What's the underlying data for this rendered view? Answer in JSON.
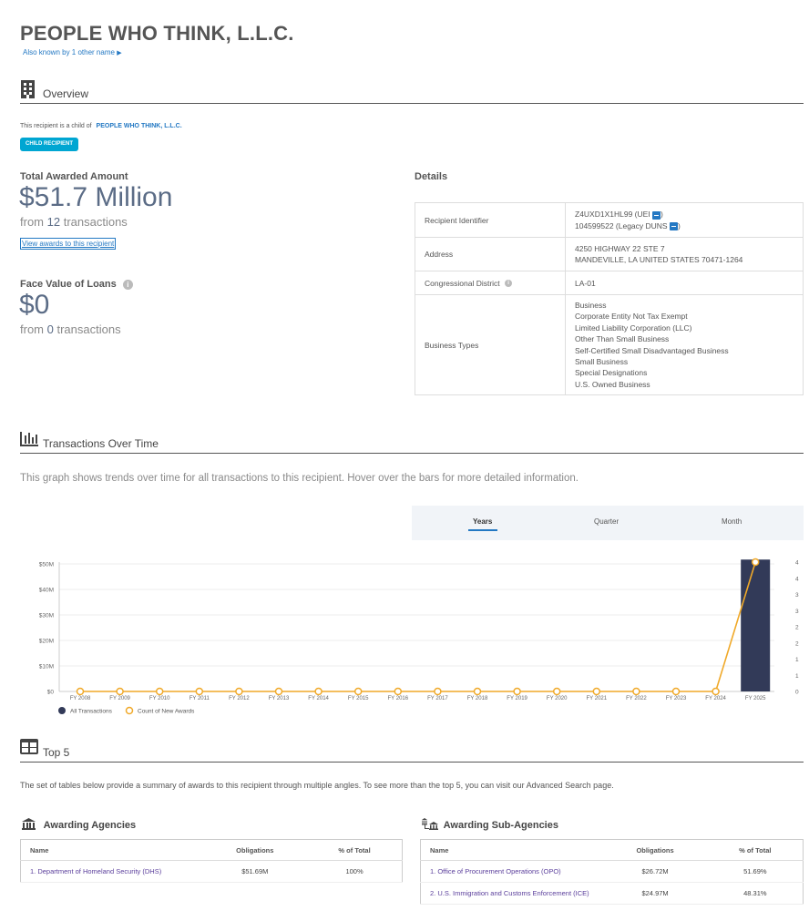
{
  "header": {
    "title": "PEOPLE WHO THINK, L.L.C.",
    "aka": "Also known by 1 other name"
  },
  "overview": {
    "section_title": "Overview",
    "child_text": "This recipient is a child of",
    "parent_name": "PEOPLE WHO THINK, L.L.C.",
    "badge": "CHILD RECIPIENT",
    "total_label": "Total Awarded Amount",
    "total_value": "$51.7 Million",
    "total_from_prefix": "from",
    "total_count": "12",
    "total_from_suffix": "transactions",
    "view_awards": "View awards to this recipient",
    "loans_label": "Face Value of Loans",
    "loans_value": "$0",
    "loans_from_prefix": "from",
    "loans_count": "0",
    "loans_from_suffix": "transactions"
  },
  "details": {
    "title": "Details",
    "recipient_identifier_label": "Recipient Identifier",
    "uei_line_prefix": "Z4UXD1X1HL99 (UEI",
    "uei_line_suffix": ")",
    "duns_line_prefix": "104599522 (Legacy DUNS",
    "duns_line_suffix": ")",
    "address_label": "Address",
    "address_line1": "4250 HIGHWAY 22 STE 7",
    "address_line2": "MANDEVILLE, LA UNITED STATES 70471-1264",
    "district_label": "Congressional District",
    "district_value": "LA-01",
    "business_types_label": "Business Types",
    "business_types": [
      "Business",
      "Corporate Entity Not Tax Exempt",
      "Limited Liability Corporation (LLC)",
      "Other Than Small Business",
      "Self-Certified Small Disadvantaged Business",
      "Small Business",
      "Special Designations",
      "U.S. Owned Business"
    ]
  },
  "transactions": {
    "section_title": "Transactions Over Time",
    "description": "This graph shows trends over time for all transactions to this recipient. Hover over the bars for more detailed information.",
    "periods": [
      "Years",
      "Quarter",
      "Month"
    ],
    "active_period": "Years"
  },
  "chart_data": {
    "type": "bar",
    "categories": [
      "FY 2008",
      "FY 2009",
      "FY 2010",
      "FY 2011",
      "FY 2012",
      "FY 2013",
      "FY 2014",
      "FY 2015",
      "FY 2016",
      "FY 2017",
      "FY 2018",
      "FY 2019",
      "FY 2020",
      "FY 2021",
      "FY 2022",
      "FY 2023",
      "FY 2024",
      "FY 2025"
    ],
    "series": [
      {
        "name": "All Transactions",
        "kind": "bar",
        "axis": "left",
        "color": "#323a58",
        "values": [
          0,
          0,
          0,
          0,
          0,
          0,
          0,
          0,
          0,
          0,
          0,
          0,
          0,
          0,
          0,
          0,
          0,
          51.7
        ]
      },
      {
        "name": "Count of New Awards",
        "kind": "line",
        "axis": "right",
        "color": "#f0a929",
        "values": [
          0,
          0,
          0,
          0,
          0,
          0,
          0,
          0,
          0,
          0,
          0,
          0,
          0,
          0,
          0,
          0,
          0,
          4
        ]
      }
    ],
    "y_left_ticks": [
      "$0",
      "$10M",
      "$20M",
      "$30M",
      "$40M",
      "$50M"
    ],
    "y_left_range": [
      0,
      50
    ],
    "y_right_ticks": [
      "0",
      "1",
      "1",
      "2",
      "2",
      "3",
      "3",
      "4",
      "4"
    ],
    "y_right_range": [
      0,
      4
    ],
    "legend": [
      "All Transactions",
      "Count of New Awards"
    ],
    "legend_position": "bottom-left",
    "grid": true
  },
  "top5": {
    "section_title": "Top 5",
    "description": "The set of tables below provide a summary of awards to this recipient through multiple angles. To see more than the top 5, you can visit our Advanced Search page.",
    "agencies": {
      "title": "Awarding Agencies",
      "columns": [
        "Name",
        "Obligations",
        "% of Total"
      ],
      "rows": [
        [
          "1. Department of Homeland Security (DHS)",
          "$51.69M",
          "100%"
        ]
      ]
    },
    "sub_agencies": {
      "title": "Awarding Sub-Agencies",
      "columns": [
        "Name",
        "Obligations",
        "% of Total"
      ],
      "rows": [
        [
          "1. Office of Procurement Operations (OPO)",
          "$26.72M",
          "51.69%"
        ],
        [
          "2. U.S. Immigration and Customs Enforcement (ICE)",
          "$24.97M",
          "48.31%"
        ]
      ]
    }
  }
}
